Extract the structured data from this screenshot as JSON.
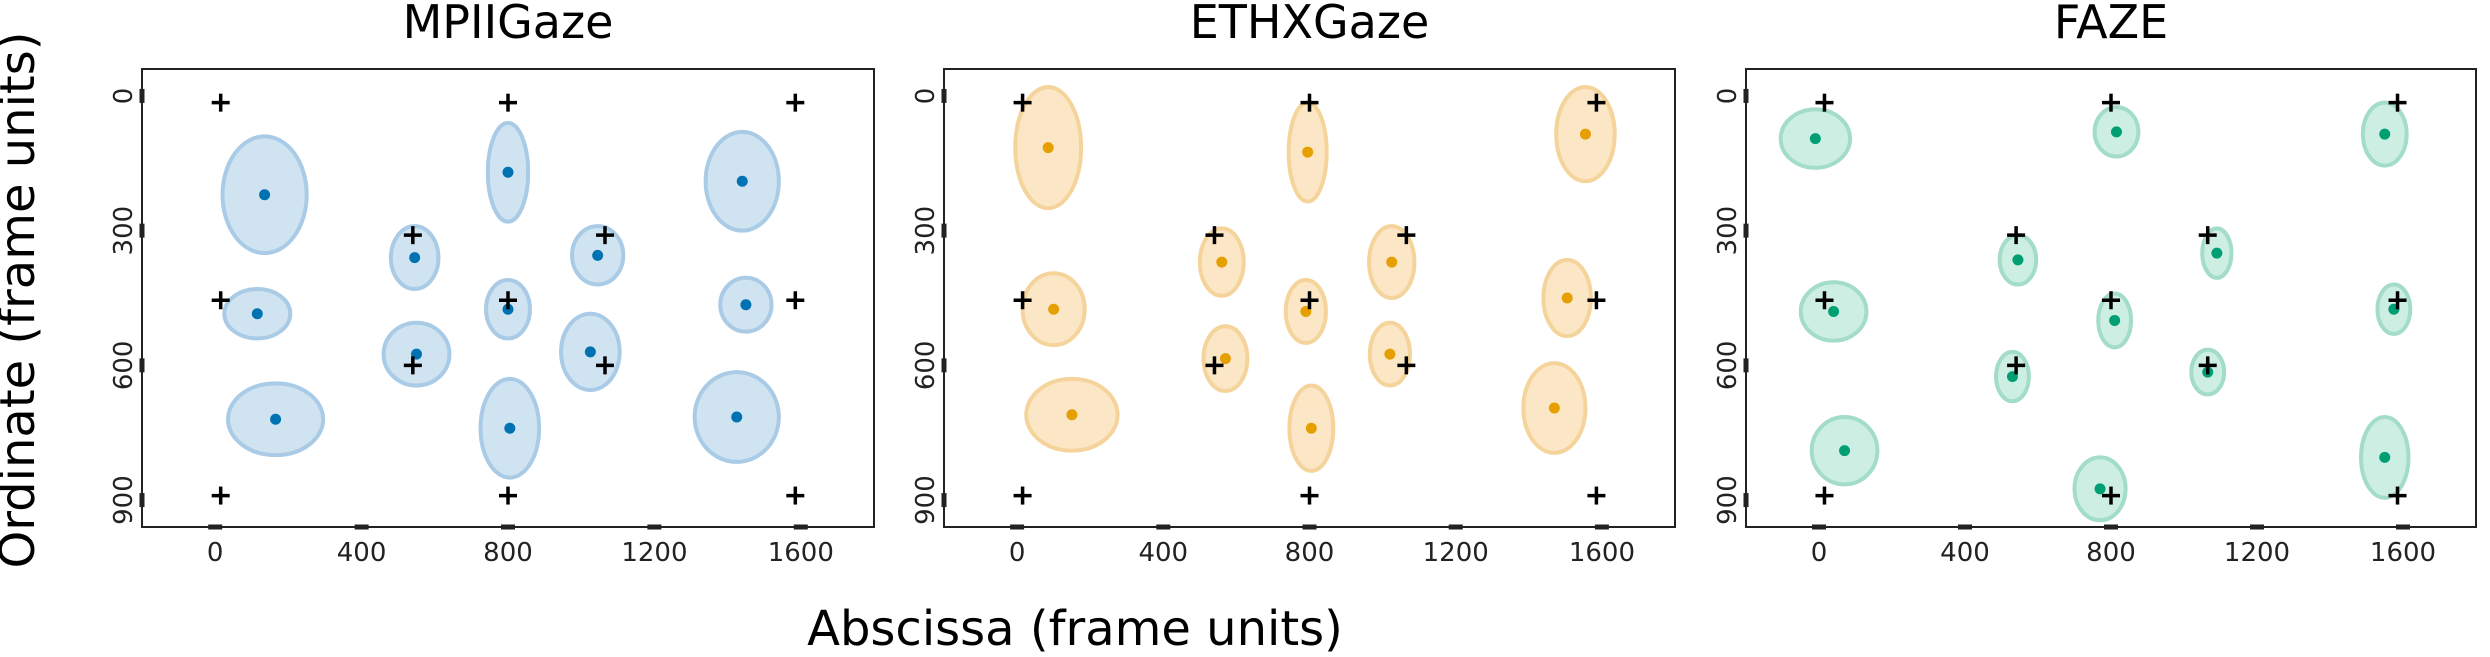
{
  "figure": {
    "xlabel": "Abscissa (frame units)",
    "ylabel": "Ordinate (frame units)"
  },
  "chart_data": [
    {
      "type": "scatter",
      "title": "MPIIGaze",
      "color": "#0072b2",
      "fill": "#cfe3f1",
      "edge": "#a9cbe6",
      "xlim": [
        -200,
        1800
      ],
      "ylim": [
        -60,
        960
      ],
      "x_ticks": [
        "0",
        "400",
        "800",
        "1200",
        "1600"
      ],
      "x_tick_values": [
        0,
        400,
        800,
        1200,
        1600
      ],
      "y_ticks": [
        "0",
        "300",
        "600",
        "900"
      ],
      "y_tick_values": [
        0,
        300,
        600,
        900
      ],
      "targets": [
        [
          15,
          15
        ],
        [
          800,
          15
        ],
        [
          1585,
          15
        ],
        [
          540,
          310
        ],
        [
          1065,
          310
        ],
        [
          15,
          455
        ],
        [
          800,
          455
        ],
        [
          1585,
          455
        ],
        [
          540,
          600
        ],
        [
          1065,
          600
        ],
        [
          15,
          890
        ],
        [
          800,
          890
        ],
        [
          1585,
          890
        ]
      ],
      "points": [
        {
          "x": 135,
          "y": 220,
          "rx": 115,
          "ry": 130
        },
        {
          "x": 800,
          "y": 170,
          "rx": 55,
          "ry": 110
        },
        {
          "x": 1440,
          "y": 190,
          "rx": 100,
          "ry": 110
        },
        {
          "x": 545,
          "y": 360,
          "rx": 65,
          "ry": 70
        },
        {
          "x": 1045,
          "y": 355,
          "rx": 70,
          "ry": 65
        },
        {
          "x": 115,
          "y": 485,
          "rx": 90,
          "ry": 55
        },
        {
          "x": 800,
          "y": 475,
          "rx": 60,
          "ry": 65
        },
        {
          "x": 1450,
          "y": 465,
          "rx": 70,
          "ry": 60
        },
        {
          "x": 550,
          "y": 575,
          "rx": 90,
          "ry": 70
        },
        {
          "x": 1025,
          "y": 570,
          "rx": 80,
          "ry": 85
        },
        {
          "x": 165,
          "y": 720,
          "rx": 130,
          "ry": 80
        },
        {
          "x": 805,
          "y": 740,
          "rx": 80,
          "ry": 110
        },
        {
          "x": 1425,
          "y": 715,
          "rx": 115,
          "ry": 100
        }
      ]
    },
    {
      "type": "scatter",
      "title": "ETHXGaze",
      "color": "#e69f00",
      "fill": "#fbe6c6",
      "edge": "#f5d49c",
      "xlim": [
        -200,
        1800
      ],
      "ylim": [
        -60,
        960
      ],
      "x_ticks": [
        "0",
        "400",
        "800",
        "1200",
        "1600"
      ],
      "x_tick_values": [
        0,
        400,
        800,
        1200,
        1600
      ],
      "y_ticks": [
        "0",
        "300",
        "600",
        "900"
      ],
      "y_tick_values": [
        0,
        300,
        600,
        900
      ],
      "targets": [
        [
          15,
          15
        ],
        [
          800,
          15
        ],
        [
          1585,
          15
        ],
        [
          540,
          310
        ],
        [
          1065,
          310
        ],
        [
          15,
          455
        ],
        [
          800,
          455
        ],
        [
          1585,
          455
        ],
        [
          540,
          600
        ],
        [
          1065,
          600
        ],
        [
          15,
          890
        ],
        [
          800,
          890
        ],
        [
          1585,
          890
        ]
      ],
      "points": [
        {
          "x": 85,
          "y": 115,
          "rx": 90,
          "ry": 135
        },
        {
          "x": 795,
          "y": 125,
          "rx": 52,
          "ry": 110
        },
        {
          "x": 1555,
          "y": 85,
          "rx": 80,
          "ry": 105
        },
        {
          "x": 560,
          "y": 370,
          "rx": 60,
          "ry": 75
        },
        {
          "x": 1025,
          "y": 370,
          "rx": 62,
          "ry": 80
        },
        {
          "x": 100,
          "y": 475,
          "rx": 85,
          "ry": 80
        },
        {
          "x": 790,
          "y": 480,
          "rx": 55,
          "ry": 70
        },
        {
          "x": 1505,
          "y": 450,
          "rx": 65,
          "ry": 85
        },
        {
          "x": 570,
          "y": 585,
          "rx": 60,
          "ry": 72
        },
        {
          "x": 1020,
          "y": 575,
          "rx": 55,
          "ry": 70
        },
        {
          "x": 150,
          "y": 710,
          "rx": 125,
          "ry": 80
        },
        {
          "x": 805,
          "y": 740,
          "rx": 60,
          "ry": 95
        },
        {
          "x": 1470,
          "y": 695,
          "rx": 85,
          "ry": 100
        }
      ]
    },
    {
      "type": "scatter",
      "title": "FAZE",
      "color": "#009e73",
      "fill": "#cdeee2",
      "edge": "#a3dcc7",
      "xlim": [
        -200,
        1800
      ],
      "ylim": [
        -60,
        960
      ],
      "x_ticks": [
        "0",
        "400",
        "800",
        "1200",
        "1600"
      ],
      "x_tick_values": [
        0,
        400,
        800,
        1200,
        1600
      ],
      "y_ticks": [
        "0",
        "300",
        "600",
        "900"
      ],
      "y_tick_values": [
        0,
        300,
        600,
        900
      ],
      "targets": [
        [
          15,
          15
        ],
        [
          800,
          15
        ],
        [
          1585,
          15
        ],
        [
          540,
          310
        ],
        [
          1065,
          310
        ],
        [
          15,
          455
        ],
        [
          800,
          455
        ],
        [
          1585,
          455
        ],
        [
          540,
          600
        ],
        [
          1065,
          600
        ],
        [
          15,
          890
        ],
        [
          800,
          890
        ],
        [
          1585,
          890
        ]
      ],
      "points": [
        {
          "x": -10,
          "y": 95,
          "rx": 95,
          "ry": 65
        },
        {
          "x": 815,
          "y": 80,
          "rx": 60,
          "ry": 55
        },
        {
          "x": 1550,
          "y": 85,
          "rx": 60,
          "ry": 70
        },
        {
          "x": 545,
          "y": 365,
          "rx": 50,
          "ry": 55
        },
        {
          "x": 1090,
          "y": 350,
          "rx": 40,
          "ry": 55
        },
        {
          "x": 40,
          "y": 480,
          "rx": 90,
          "ry": 65
        },
        {
          "x": 810,
          "y": 500,
          "rx": 45,
          "ry": 60
        },
        {
          "x": 1575,
          "y": 475,
          "rx": 45,
          "ry": 55
        },
        {
          "x": 530,
          "y": 625,
          "rx": 45,
          "ry": 55
        },
        {
          "x": 1065,
          "y": 615,
          "rx": 45,
          "ry": 50
        },
        {
          "x": 70,
          "y": 790,
          "rx": 90,
          "ry": 75
        },
        {
          "x": 770,
          "y": 875,
          "rx": 70,
          "ry": 70
        },
        {
          "x": 1550,
          "y": 805,
          "rx": 65,
          "ry": 90
        }
      ]
    }
  ]
}
